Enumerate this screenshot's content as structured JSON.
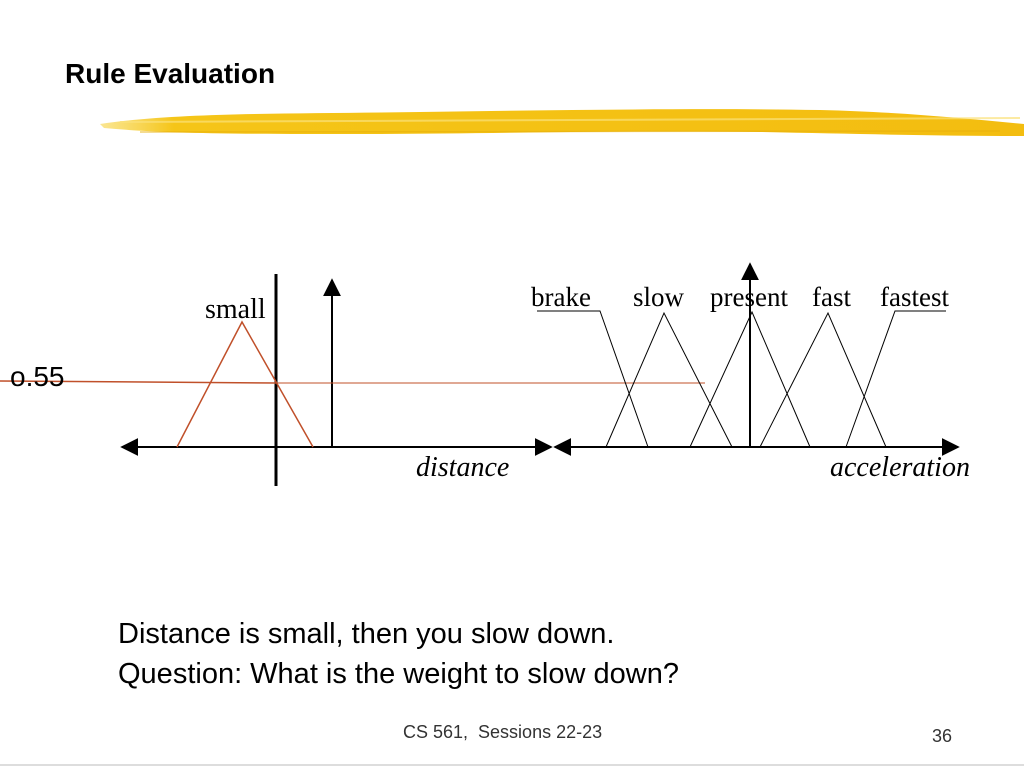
{
  "slide": {
    "title": "Rule Evaluation",
    "body_lines": [
      "Distance is small, then you slow down.",
      "Question: What is the weight to slow down?"
    ],
    "footer": "CS 561,  Sessions 22-23",
    "page_number": "36"
  },
  "diagram": {
    "value_label": "o.55",
    "distance_axis_label": "distance",
    "acceleration_axis_label": "acceleration",
    "distance_sets": [
      "small"
    ],
    "acceleration_sets": [
      "brake",
      "slow",
      "present",
      "fast",
      "fastest"
    ]
  },
  "colors": {
    "highlighter": "#f5c518",
    "membership_line": "#c0502a",
    "axis": "#000000"
  }
}
